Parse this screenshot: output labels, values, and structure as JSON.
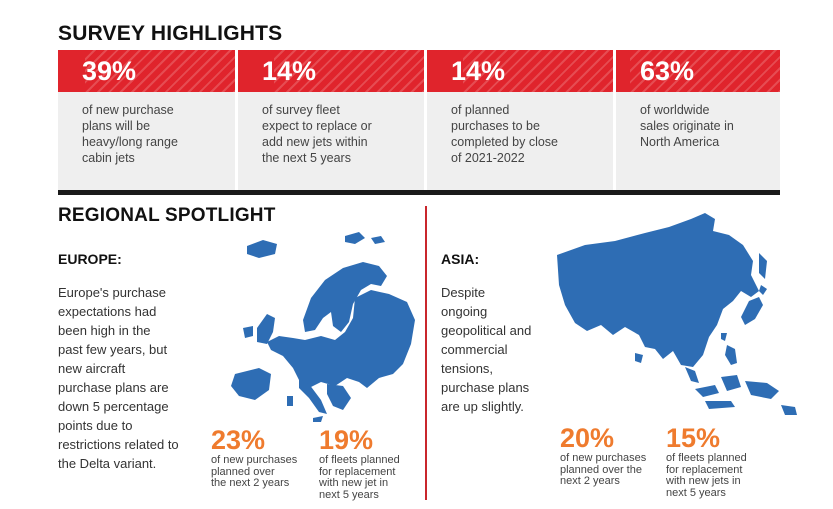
{
  "survey": {
    "title": "SURVEY HIGHLIGHTS",
    "items": [
      {
        "pct": "39%",
        "lines": [
          "of new purchase",
          "plans will be",
          "heavy/long range",
          "cabin jets"
        ]
      },
      {
        "pct": "14%",
        "lines": [
          "of survey fleet",
          "expect to replace or",
          "add new jets within",
          "the next 5 years"
        ]
      },
      {
        "pct": "14%",
        "lines": [
          "of planned",
          "purchases to be",
          "completed by close",
          "of 2021-2022"
        ]
      },
      {
        "pct": "63%",
        "lines": [
          "of worldwide",
          "sales originate in",
          "North America"
        ]
      }
    ]
  },
  "regional": {
    "title": "REGIONAL SPOTLIGHT",
    "europe": {
      "name": "EUROPE:",
      "lines": [
        "Europe's purchase",
        "expectations had",
        "been high in the",
        "past few years, but",
        "new aircraft",
        "purchase plans are",
        "down 5 percentage",
        "points due to",
        "restrictions related to",
        "the Delta variant."
      ],
      "stats": [
        {
          "pct": "23%",
          "lines": [
            "of new purchases",
            "planned over",
            "the next 2 years"
          ]
        },
        {
          "pct": "19%",
          "lines": [
            "of fleets planned",
            "for replacement",
            "with new jet in",
            "next 5 years"
          ]
        }
      ]
    },
    "asia": {
      "name": "ASIA:",
      "lines": [
        "Despite",
        "ongoing",
        "geopolitical and",
        "commercial",
        "tensions,",
        "purchase plans",
        "are up slightly."
      ],
      "stats": [
        {
          "pct": "20%",
          "lines": [
            "of new purchases",
            "planned over the",
            "next 2 years"
          ]
        },
        {
          "pct": "15%",
          "lines": [
            "of fleets planned",
            "for replacement",
            "with new jets in",
            "next 5 years"
          ]
        }
      ]
    }
  },
  "colors": {
    "band": "#e0242c",
    "accent": "#ef7b2e",
    "map": "#2e6db4",
    "divider": "#c9262c"
  }
}
